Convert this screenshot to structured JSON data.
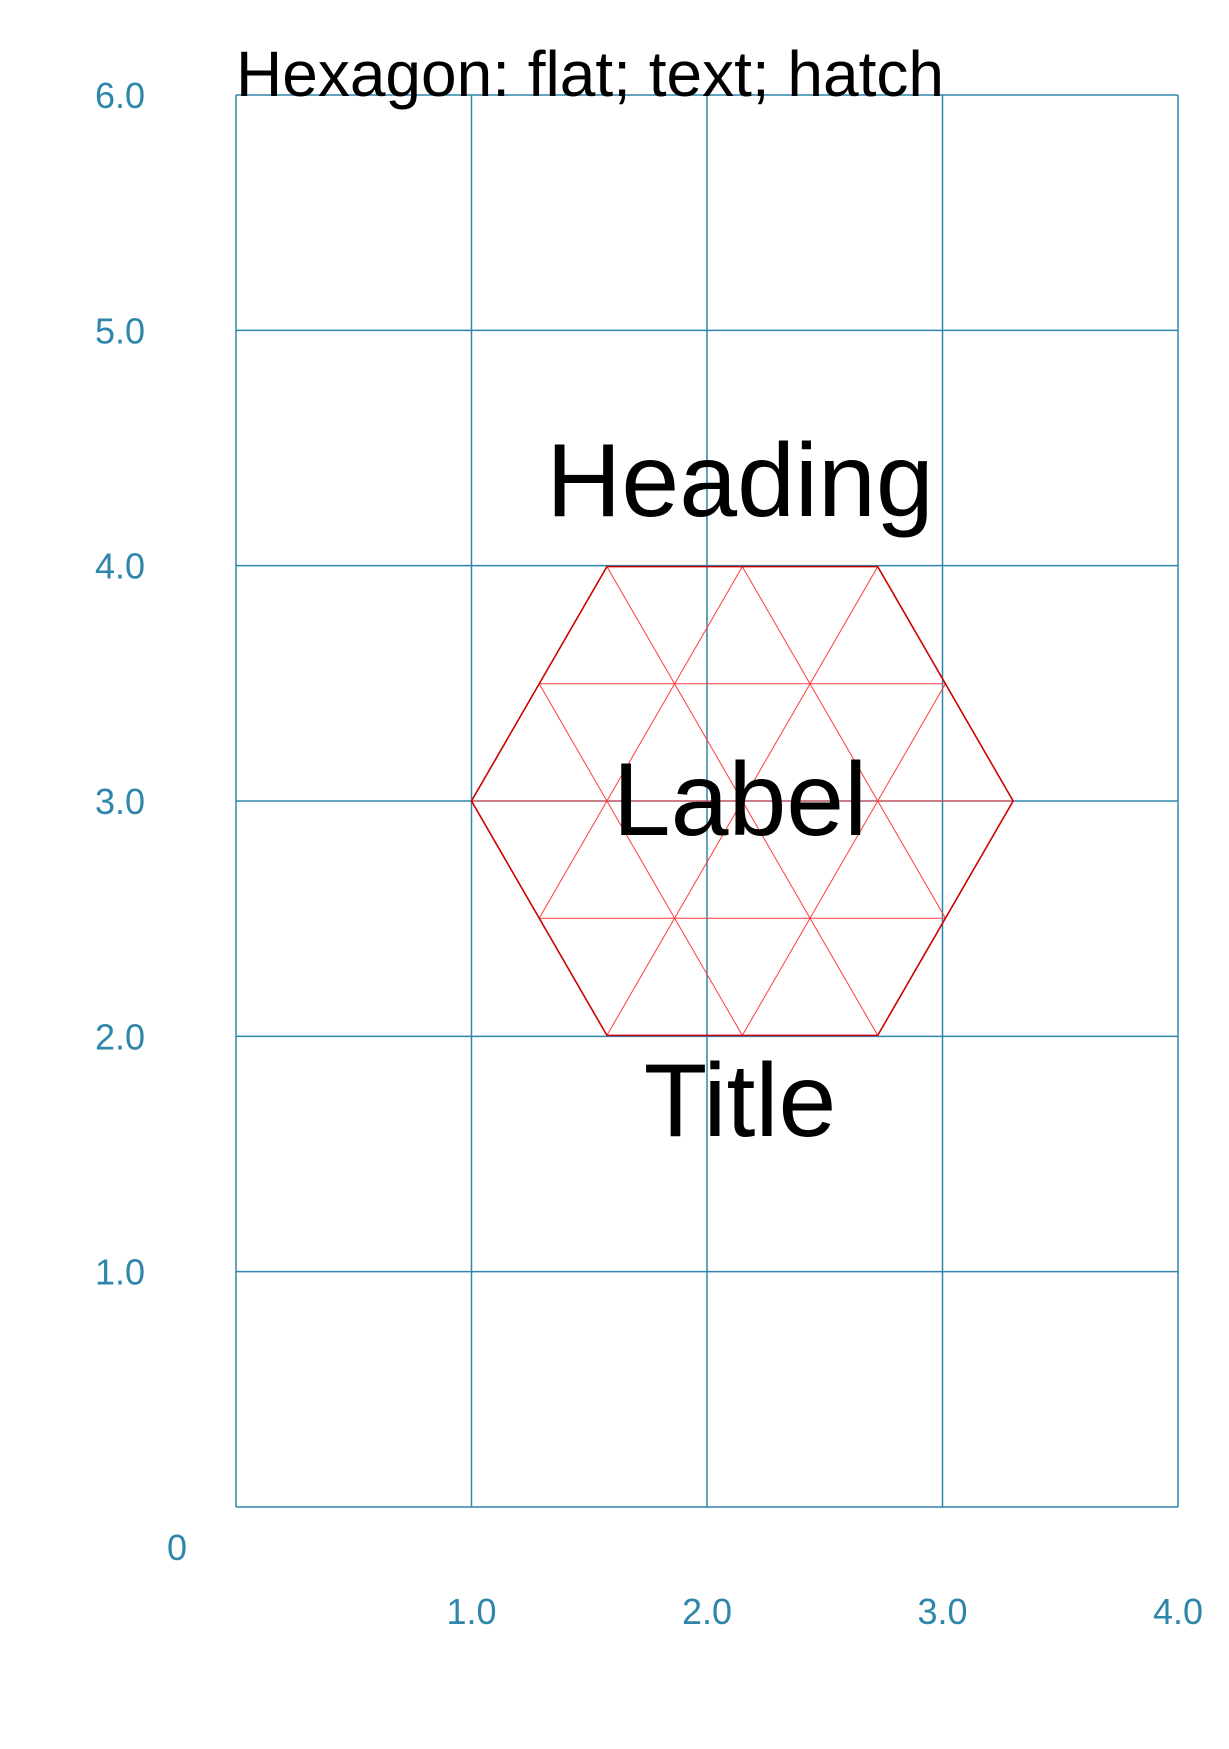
{
  "title": "Hexagon: flat; text; hatch",
  "colors": {
    "grid": "#2e86ab",
    "shape": "#cc0000",
    "hatch": "#ff3b3b",
    "text": "#000000"
  },
  "axes": {
    "origin_label": "0",
    "x_ticks": [
      "1.0",
      "2.0",
      "3.0",
      "4.0"
    ],
    "y_ticks": [
      "6.0",
      "5.0",
      "4.0",
      "3.0",
      "2.0",
      "1.0"
    ],
    "x_range": [
      0,
      4
    ],
    "y_range": [
      0,
      6
    ],
    "grid": true
  },
  "hexagon": {
    "orientation": "flat",
    "center": [
      2.15,
      3.0
    ],
    "radius": 1.15,
    "hatch": "triangular"
  },
  "labels": {
    "heading": "Heading",
    "label": "Label",
    "title": "Title"
  }
}
